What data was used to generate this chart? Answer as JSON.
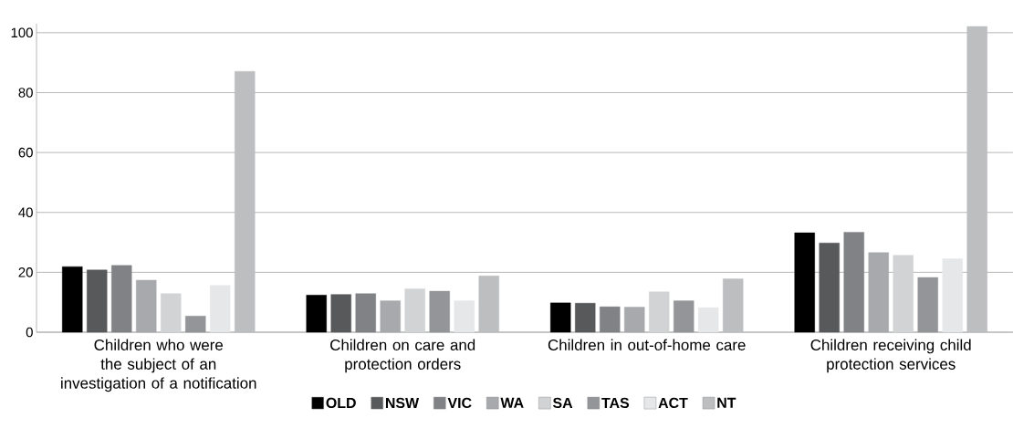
{
  "chart_data": {
    "type": "bar",
    "categories": [
      "Children who were the subject of an investigation of a notification",
      "Children on care and protection orders",
      "Children in out-of-home care",
      "Children receiving child protection services"
    ],
    "series": [
      {
        "name": "OLD",
        "color": "#000000",
        "values": [
          21.9,
          12.4,
          9.8,
          33.2
        ]
      },
      {
        "name": "NSW",
        "color": "#58595b",
        "values": [
          20.8,
          12.6,
          9.7,
          29.8
        ]
      },
      {
        "name": "VIC",
        "color": "#808285",
        "values": [
          22.3,
          12.9,
          8.5,
          33.4
        ]
      },
      {
        "name": "WA",
        "color": "#a7a9ac",
        "values": [
          17.4,
          10.5,
          8.4,
          26.6
        ]
      },
      {
        "name": "SA",
        "color": "#d1d3d4",
        "values": [
          12.9,
          14.5,
          13.5,
          25.7
        ]
      },
      {
        "name": "TAS",
        "color": "#939598",
        "values": [
          5.4,
          13.7,
          10.5,
          18.3
        ]
      },
      {
        "name": "ACT",
        "color": "#e6e7e8",
        "values": [
          15.6,
          10.5,
          8.2,
          24.5
        ]
      },
      {
        "name": "NT",
        "color": "#bcbec0",
        "values": [
          87.1,
          18.8,
          17.8,
          102.1
        ]
      }
    ],
    "ylim": [
      0,
      103
    ],
    "yticks": [
      0,
      20,
      40,
      60,
      80,
      100
    ],
    "grid": "y",
    "legend": "bottom"
  }
}
